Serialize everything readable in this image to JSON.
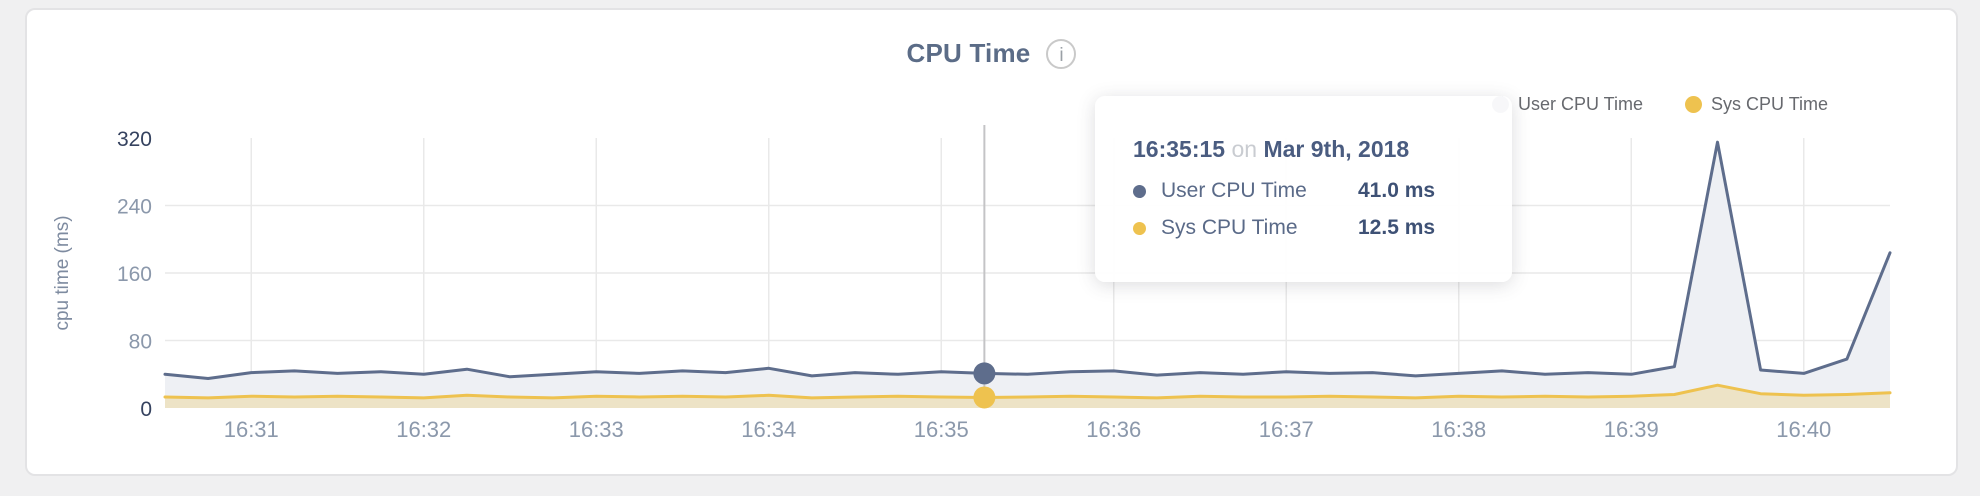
{
  "header": {
    "info_glyph": "i"
  },
  "chart_data": {
    "type": "area",
    "title": "CPU Time",
    "ylabel": "cpu time (ms)",
    "ylim": [
      0,
      320
    ],
    "y_ticks": [
      0,
      80,
      160,
      240,
      320
    ],
    "x_ticks": [
      "16:31",
      "16:32",
      "16:33",
      "16:34",
      "16:35",
      "16:36",
      "16:37",
      "16:38",
      "16:39",
      "16:40"
    ],
    "grid": "on",
    "legend_position": "top-right",
    "x_times": [
      "16:30:30",
      "16:30:45",
      "16:31:00",
      "16:31:15",
      "16:31:30",
      "16:31:45",
      "16:32:00",
      "16:32:15",
      "16:32:30",
      "16:32:45",
      "16:33:00",
      "16:33:15",
      "16:33:30",
      "16:33:45",
      "16:34:00",
      "16:34:15",
      "16:34:30",
      "16:34:45",
      "16:35:00",
      "16:35:15",
      "16:35:30",
      "16:35:45",
      "16:36:00",
      "16:36:15",
      "16:36:30",
      "16:36:45",
      "16:37:00",
      "16:37:15",
      "16:37:30",
      "16:37:45",
      "16:38:00",
      "16:38:15",
      "16:38:30",
      "16:38:45",
      "16:39:00",
      "16:39:15",
      "16:39:30",
      "16:39:45",
      "16:40:00",
      "16:40:15",
      "16:40:30"
    ],
    "series": [
      {
        "name": "User CPU Time",
        "color": "#5e6d8c",
        "fill": "#eef0f4",
        "values": [
          40,
          35,
          42,
          44,
          41,
          43,
          40,
          46,
          37,
          40,
          43,
          41,
          44,
          42,
          47,
          38,
          42,
          40,
          43,
          41,
          40,
          43,
          44,
          39,
          42,
          40,
          43,
          41,
          42,
          38,
          41,
          44,
          40,
          42,
          40,
          49,
          315,
          45,
          41,
          58,
          184
        ]
      },
      {
        "name": "Sys CPU Time",
        "color": "#eec24f",
        "fill": "rgba(238,194,79,0.28)",
        "values": [
          13,
          12,
          14,
          13,
          14,
          13,
          12,
          15,
          13,
          12,
          14,
          13,
          14,
          13,
          15,
          12,
          13,
          14,
          13,
          12.5,
          13,
          14,
          13,
          12,
          14,
          13,
          13,
          14,
          13,
          12,
          14,
          13,
          14,
          13,
          14,
          16,
          27,
          17,
          15,
          16,
          18
        ]
      }
    ],
    "hover": {
      "t": "16:35:15"
    }
  },
  "tooltip": {
    "time": "16:35:15",
    "conjunction": "on",
    "date": "Mar 9th, 2018",
    "rows": [
      {
        "label": "User CPU Time",
        "value": "41.0 ms"
      },
      {
        "label": "Sys CPU Time",
        "value": "12.5 ms"
      }
    ]
  },
  "colors": {
    "axis_label": "#8b98ab",
    "axis_label_strong": "#35425f",
    "axis_title": "#7e8ba0",
    "grid": "#e9e9e9",
    "crosshair": "#c4c4c6"
  }
}
